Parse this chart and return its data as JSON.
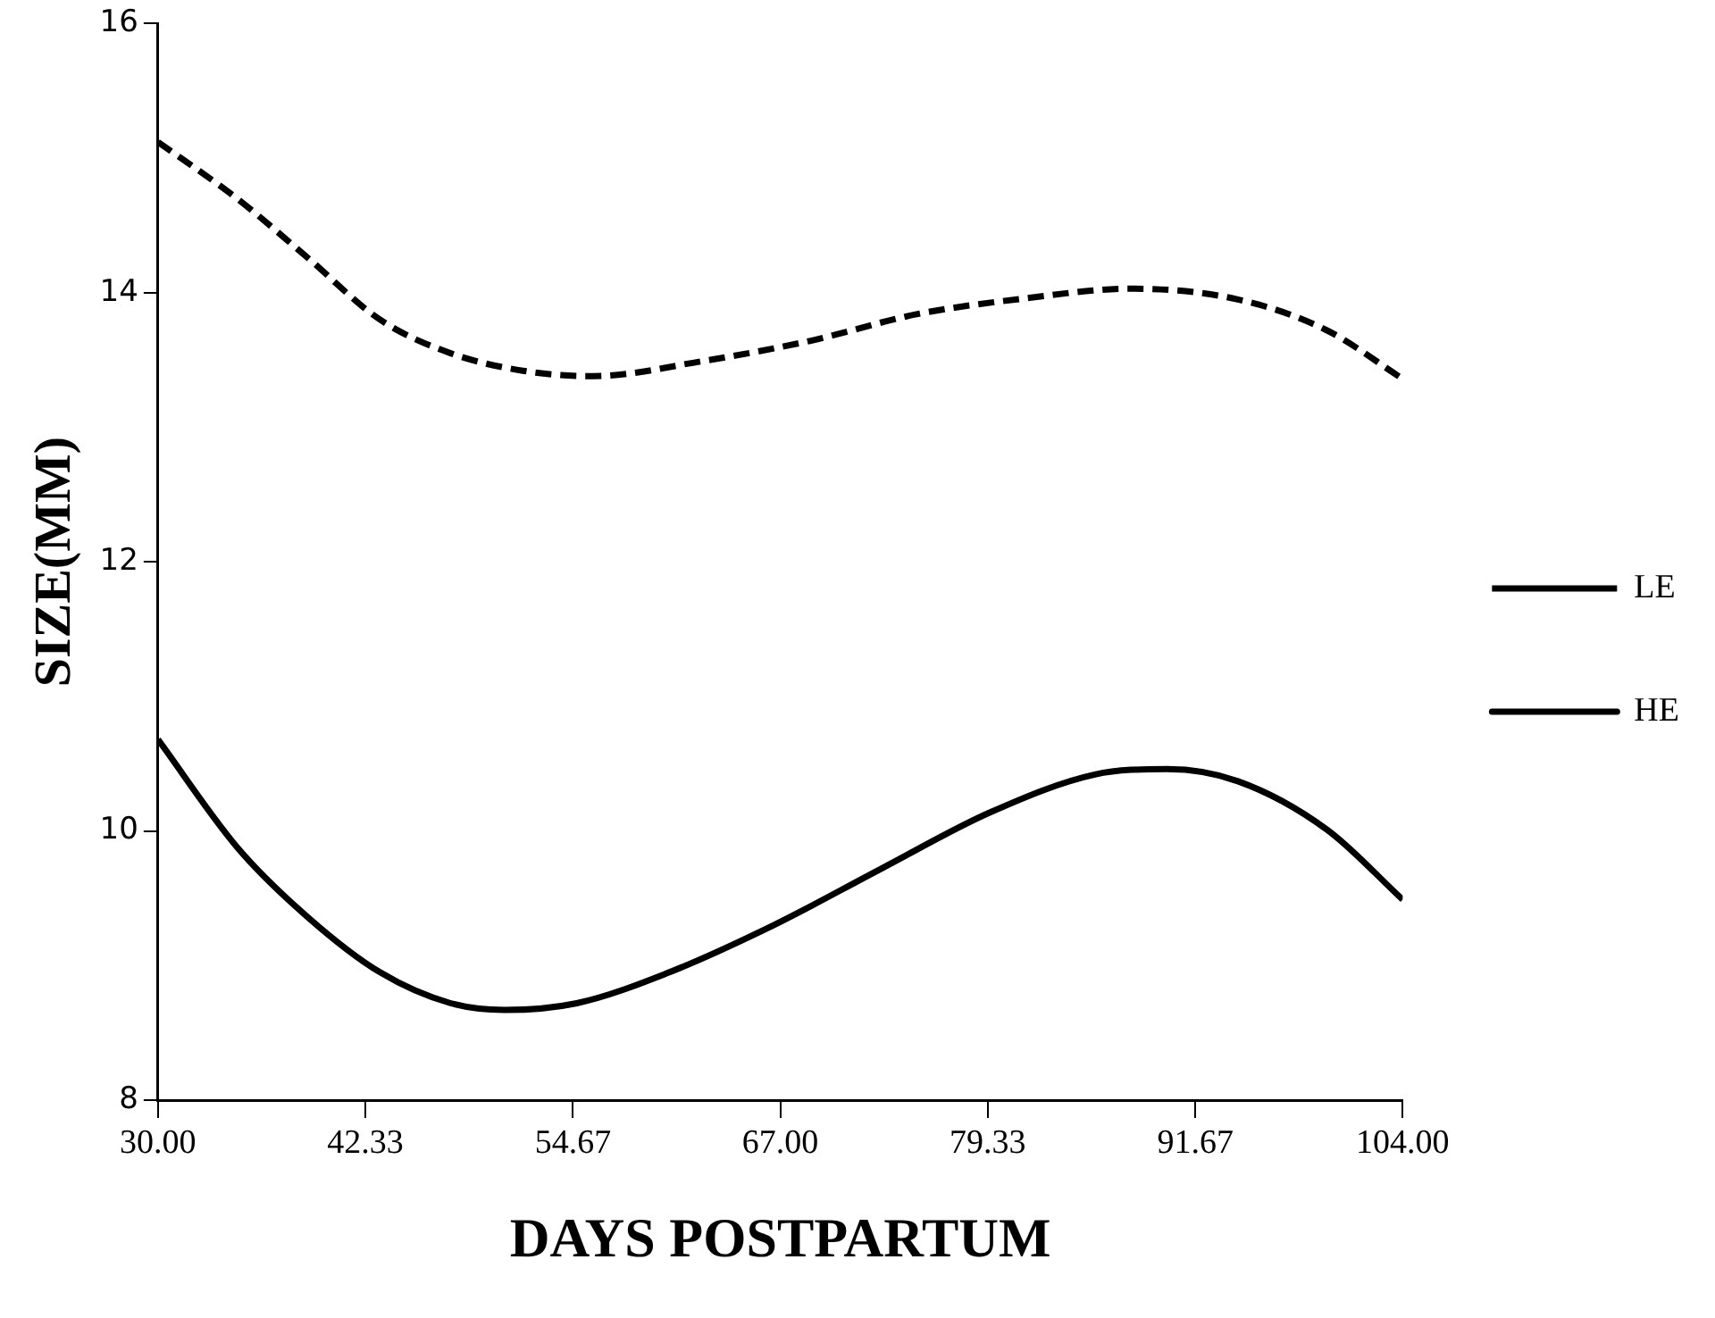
{
  "chart_data": {
    "type": "line",
    "xlabel": "DAYS POSTPARTUM",
    "ylabel": "SIZE(MM)",
    "xlim": [
      30,
      104
    ],
    "xticks": [
      {
        "value": 30,
        "label": "30.00"
      },
      {
        "value": 42.33,
        "label": "42.33"
      },
      {
        "value": 54.67,
        "label": "54.67"
      },
      {
        "value": 67,
        "label": "67.00"
      },
      {
        "value": 79.33,
        "label": "79.33"
      },
      {
        "value": 91.67,
        "label": "91.67"
      },
      {
        "value": 104,
        "label": "104.00"
      }
    ],
    "ylim": [
      8,
      16
    ],
    "yticks": [
      8,
      10,
      12,
      14,
      16
    ],
    "grid": false,
    "legend": "right",
    "marker": "none",
    "series": [
      {
        "name": "LE",
        "color": "#000000",
        "line_style": "dashed",
        "x": [
          30,
          34.7,
          38.9,
          43.2,
          47.4,
          51.7,
          55.9,
          62.3,
          68.7,
          75.1,
          81.7,
          87.8,
          94.2,
          99.5,
          104
        ],
        "values": [
          15.12,
          14.7,
          14.26,
          13.8,
          13.55,
          13.42,
          13.38,
          13.49,
          13.64,
          13.84,
          13.96,
          14.03,
          13.95,
          13.72,
          13.36
        ]
      },
      {
        "name": "HE",
        "color": "#000000",
        "line_style": "solid",
        "x": [
          30,
          34.7,
          38.9,
          43.2,
          47.4,
          50.6,
          54.9,
          60.2,
          66.6,
          73.0,
          79.5,
          85.7,
          90.0,
          94.2,
          99.5,
          104
        ],
        "values": [
          10.68,
          9.88,
          9.36,
          8.95,
          8.72,
          8.67,
          8.72,
          8.94,
          9.3,
          9.72,
          10.14,
          10.42,
          10.46,
          10.37,
          10.01,
          9.49
        ]
      }
    ]
  }
}
